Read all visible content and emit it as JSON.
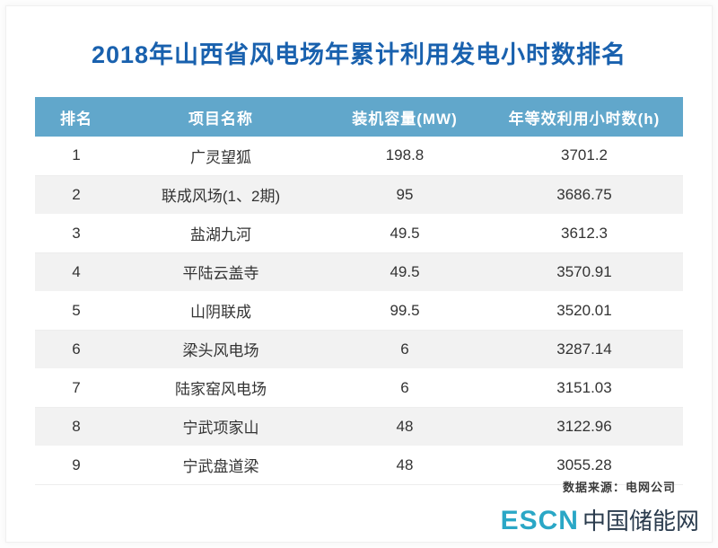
{
  "title": "2018年山西省风电场年累计利用发电小时数排名",
  "chart_data": {
    "type": "table",
    "title": "2018年山西省风电场年累计利用发电小时数排名",
    "columns": [
      "排名",
      "项目名称",
      "装机容量(MW)",
      "年等效利用小时数(h)"
    ],
    "rows": [
      [
        "1",
        "广灵望狐",
        "198.8",
        "3701.2"
      ],
      [
        "2",
        "联成风场(1、2期)",
        "95",
        "3686.75"
      ],
      [
        "3",
        "盐湖九河",
        "49.5",
        "3612.3"
      ],
      [
        "4",
        "平陆云盖寺",
        "49.5",
        "3570.91"
      ],
      [
        "5",
        "山阴联成",
        "99.5",
        "3520.01"
      ],
      [
        "6",
        "梁头风电场",
        "6",
        "3287.14"
      ],
      [
        "7",
        "陆家窑风电场",
        "6",
        "3151.03"
      ],
      [
        "8",
        "宁武项家山",
        "48",
        "3122.96"
      ],
      [
        "9",
        "宁武盘道梁",
        "48",
        "3055.28"
      ]
    ]
  },
  "footer": {
    "source": "数据来源：电网公司",
    "logo_escn": "ESCN",
    "logo_cn": "中国储能网"
  },
  "colors": {
    "title_blue": "#1961ae",
    "header_bg": "#61a7cb",
    "row_alt": "#f2f2f2",
    "logo_teal": "#2aa7c6",
    "logo_dark": "#2a3b4d"
  }
}
